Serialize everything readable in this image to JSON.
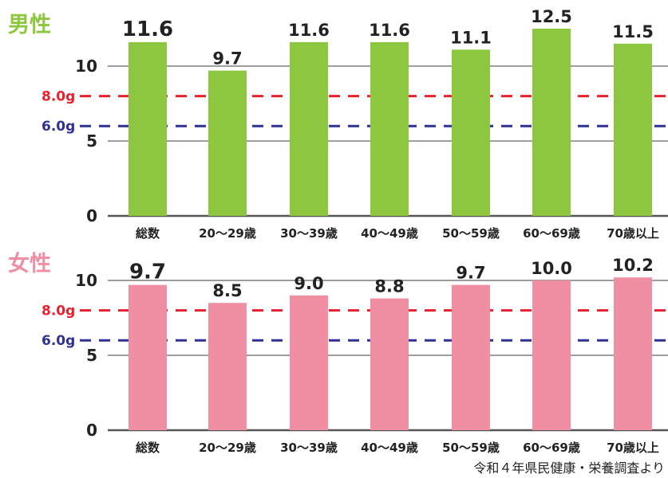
{
  "source": "令和４年県民健康・栄養調査より",
  "chart_data": [
    {
      "type": "bar",
      "title": "男性",
      "title_color": "#8dc63f",
      "bar_color": "#8dc63f",
      "categories": [
        "総数",
        "20～29歳",
        "30～39歳",
        "40～49歳",
        "50～59歳",
        "60～69歳",
        "70歳以上"
      ],
      "values": [
        11.6,
        9.7,
        11.6,
        11.6,
        11.1,
        12.5,
        11.5
      ],
      "value_labels": [
        "11.6",
        "9.7",
        "11.6",
        "11.6",
        "11.1",
        "12.5",
        "11.5"
      ],
      "ylim": [
        0,
        13
      ],
      "yticks": [
        0,
        5,
        10
      ],
      "grid": true,
      "reference_lines": [
        {
          "value": 8.0,
          "label": "8.0g",
          "color": "#e8212e"
        },
        {
          "value": 6.0,
          "label": "6.0g",
          "color": "#2e3192"
        }
      ]
    },
    {
      "type": "bar",
      "title": "女性",
      "title_color": "#f08fa3",
      "bar_color": "#f08fa3",
      "categories": [
        "総数",
        "20～29歳",
        "30～39歳",
        "40～49歳",
        "50～59歳",
        "60～69歳",
        "70歳以上"
      ],
      "values": [
        9.7,
        8.5,
        9.0,
        8.8,
        9.7,
        10.0,
        10.2
      ],
      "value_labels": [
        "9.7",
        "8.5",
        "9.0",
        "8.8",
        "9.7",
        "10.0",
        "10.2"
      ],
      "ylim": [
        0,
        11
      ],
      "yticks": [
        0,
        5,
        10
      ],
      "grid": true,
      "reference_lines": [
        {
          "value": 8.0,
          "label": "8.0g",
          "color": "#e8212e"
        },
        {
          "value": 6.0,
          "label": "6.0g",
          "color": "#2e3192"
        }
      ]
    }
  ]
}
